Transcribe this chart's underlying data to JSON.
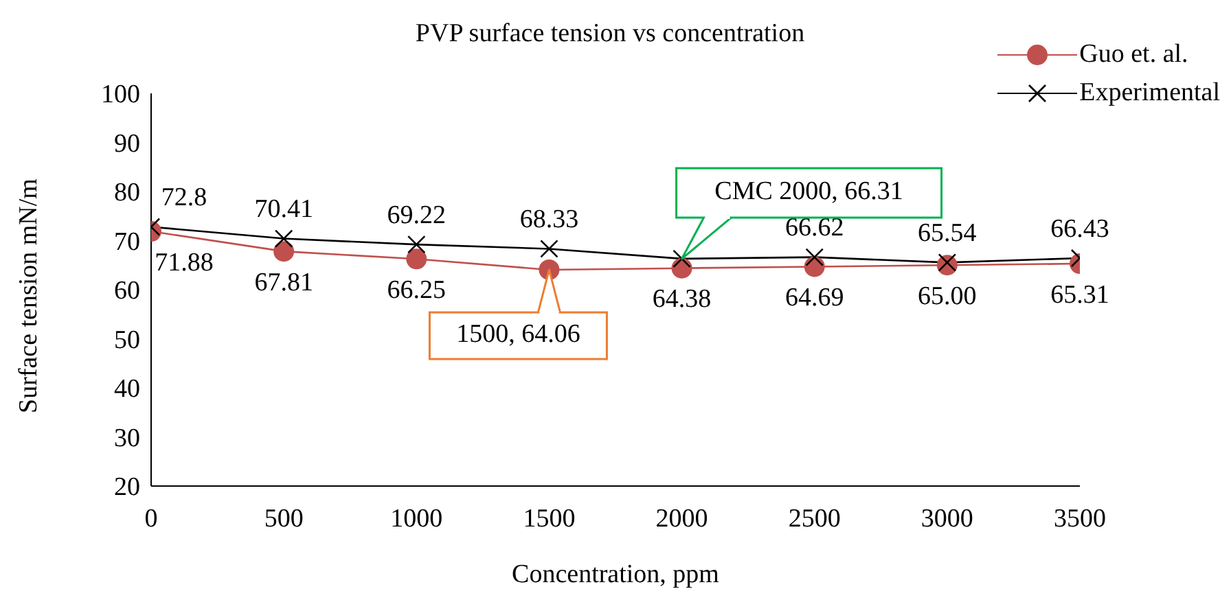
{
  "chart_data": {
    "type": "line",
    "title": "PVP surface tension vs concentration",
    "xlabel": "Concentration, ppm",
    "ylabel": "Surface tension mN/m",
    "x": [
      0,
      500,
      1000,
      1500,
      2000,
      2500,
      3000,
      3500
    ],
    "series": [
      {
        "name": "Guo et. al.",
        "color": "#c0504d",
        "marker": "circle",
        "values": [
          71.88,
          67.81,
          66.25,
          64.06,
          64.38,
          64.69,
          65.0,
          65.31
        ],
        "value_labels": [
          "71.88",
          "67.81",
          "66.25",
          null,
          "64.38",
          "64.69",
          "65.00",
          "65.31"
        ]
      },
      {
        "name": "Experimental",
        "color": "#000000",
        "marker": "cross",
        "values": [
          72.8,
          70.41,
          69.22,
          68.33,
          66.31,
          66.62,
          65.54,
          66.43
        ],
        "value_labels": [
          "72.8",
          "70.41",
          "69.22",
          "68.33",
          null,
          "66.62",
          "65.54",
          "66.43"
        ]
      }
    ],
    "annotations": [
      {
        "text": "1500, 64.06",
        "x": 1500,
        "y": 64.06
      },
      {
        "text": "CMC 2000, 66.31",
        "x": 2000,
        "y": 66.31
      }
    ],
    "xlim": [
      0,
      3500
    ],
    "xticks": [
      0,
      500,
      1000,
      1500,
      2000,
      2500,
      3000,
      3500
    ],
    "ylim": [
      20,
      100
    ],
    "yticks": [
      20,
      30,
      40,
      50,
      60,
      70,
      80,
      90,
      100
    ],
    "grid": false,
    "legend": "top right",
    "line_style": "solid"
  }
}
